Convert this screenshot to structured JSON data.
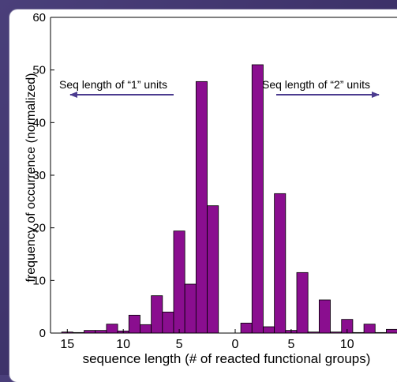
{
  "chart_data": {
    "type": "bar",
    "title": "",
    "xlabel": "sequence length (# of reacted functional groups)",
    "ylabel": "frequency of occurrence (normalized)",
    "ylim": [
      0,
      60
    ],
    "xlim": [
      -16.5,
      16.5
    ],
    "x_ticks": [
      -15,
      -10,
      -5,
      0,
      5,
      10,
      15
    ],
    "x_tick_labels": [
      "15",
      "10",
      "5",
      "0",
      "5",
      "10",
      "15"
    ],
    "y_ticks": [
      0,
      10,
      20,
      30,
      40,
      50,
      60
    ],
    "grid": false,
    "bar_color": "#8a0e8f",
    "bar_edge_color": "#000000",
    "bars": [
      {
        "x": -15,
        "value": 0.2
      },
      {
        "x": -14,
        "value": 0.1
      },
      {
        "x": -13,
        "value": 0.5
      },
      {
        "x": -12,
        "value": 0.5
      },
      {
        "x": -11,
        "value": 1.7
      },
      {
        "x": -10,
        "value": 0.4
      },
      {
        "x": -9,
        "value": 3.4
      },
      {
        "x": -8,
        "value": 1.6
      },
      {
        "x": -7,
        "value": 7.1
      },
      {
        "x": -6,
        "value": 4.0
      },
      {
        "x": -5,
        "value": 19.4
      },
      {
        "x": -4,
        "value": 9.3
      },
      {
        "x": -3,
        "value": 47.8
      },
      {
        "x": -2,
        "value": 24.2
      },
      {
        "x": 1,
        "value": 1.9
      },
      {
        "x": 2,
        "value": 51.0
      },
      {
        "x": 3,
        "value": 1.2
      },
      {
        "x": 4,
        "value": 26.5
      },
      {
        "x": 5,
        "value": 0.5
      },
      {
        "x": 6,
        "value": 11.5
      },
      {
        "x": 7,
        "value": 0.2
      },
      {
        "x": 8,
        "value": 6.3
      },
      {
        "x": 9,
        "value": 0.2
      },
      {
        "x": 10,
        "value": 2.6
      },
      {
        "x": 11,
        "value": 0.1
      },
      {
        "x": 12,
        "value": 1.7
      },
      {
        "x": 13,
        "value": 0.1
      },
      {
        "x": 14,
        "value": 0.7
      },
      {
        "x": 15,
        "value": 0.1
      },
      {
        "x": 16,
        "value": 0.4
      }
    ],
    "annotations": [
      {
        "text": "Seq length of “1” units",
        "arrow": "left"
      },
      {
        "text": "Seq length of “2” units",
        "arrow": "right"
      }
    ],
    "arrow_color": "#4b3b8f"
  }
}
